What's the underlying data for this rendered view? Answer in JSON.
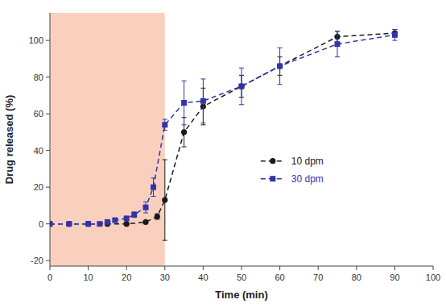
{
  "chart_data": {
    "type": "line",
    "xlabel": "Time (min)",
    "ylabel": "Drug released (%)",
    "xlim": [
      0,
      100
    ],
    "ylim": [
      -23,
      115
    ],
    "xticks": [
      0,
      10,
      20,
      30,
      40,
      50,
      60,
      70,
      80,
      90,
      100
    ],
    "yticks": [
      -20,
      0,
      20,
      40,
      60,
      80,
      100
    ],
    "grid": false,
    "legend": "right",
    "shaded_region": {
      "x": [
        0,
        30
      ],
      "color": "#f9d0be"
    },
    "series": [
      {
        "name": "10 dpm",
        "color": "#1a1a1a",
        "marker": "circle",
        "line_style": "dashed",
        "x": [
          0,
          5,
          10,
          15,
          20,
          25,
          28,
          30,
          35,
          40,
          50,
          60,
          75,
          90
        ],
        "values": [
          0,
          0,
          0,
          0,
          0,
          1,
          4,
          13,
          50,
          64,
          75,
          86,
          102,
          104
        ],
        "errors": [
          0,
          0,
          0,
          0,
          0,
          0.5,
          1.5,
          22,
          8,
          10,
          6,
          5,
          3,
          2
        ]
      },
      {
        "name": "30 dpm",
        "color": "#3333aa",
        "marker": "square",
        "line_style": "dashed",
        "x": [
          0,
          5,
          10,
          13,
          15,
          17,
          20,
          22,
          25,
          27,
          30,
          35,
          40,
          50,
          60,
          75,
          90
        ],
        "values": [
          0,
          0,
          0,
          0,
          1,
          2,
          3,
          5,
          9,
          20,
          54,
          66,
          67,
          75,
          86,
          98,
          103
        ],
        "errors": [
          0,
          0,
          0,
          0,
          0.3,
          0.5,
          0.8,
          1.5,
          3,
          5,
          3,
          12,
          12,
          10,
          10,
          7,
          3
        ]
      }
    ]
  }
}
